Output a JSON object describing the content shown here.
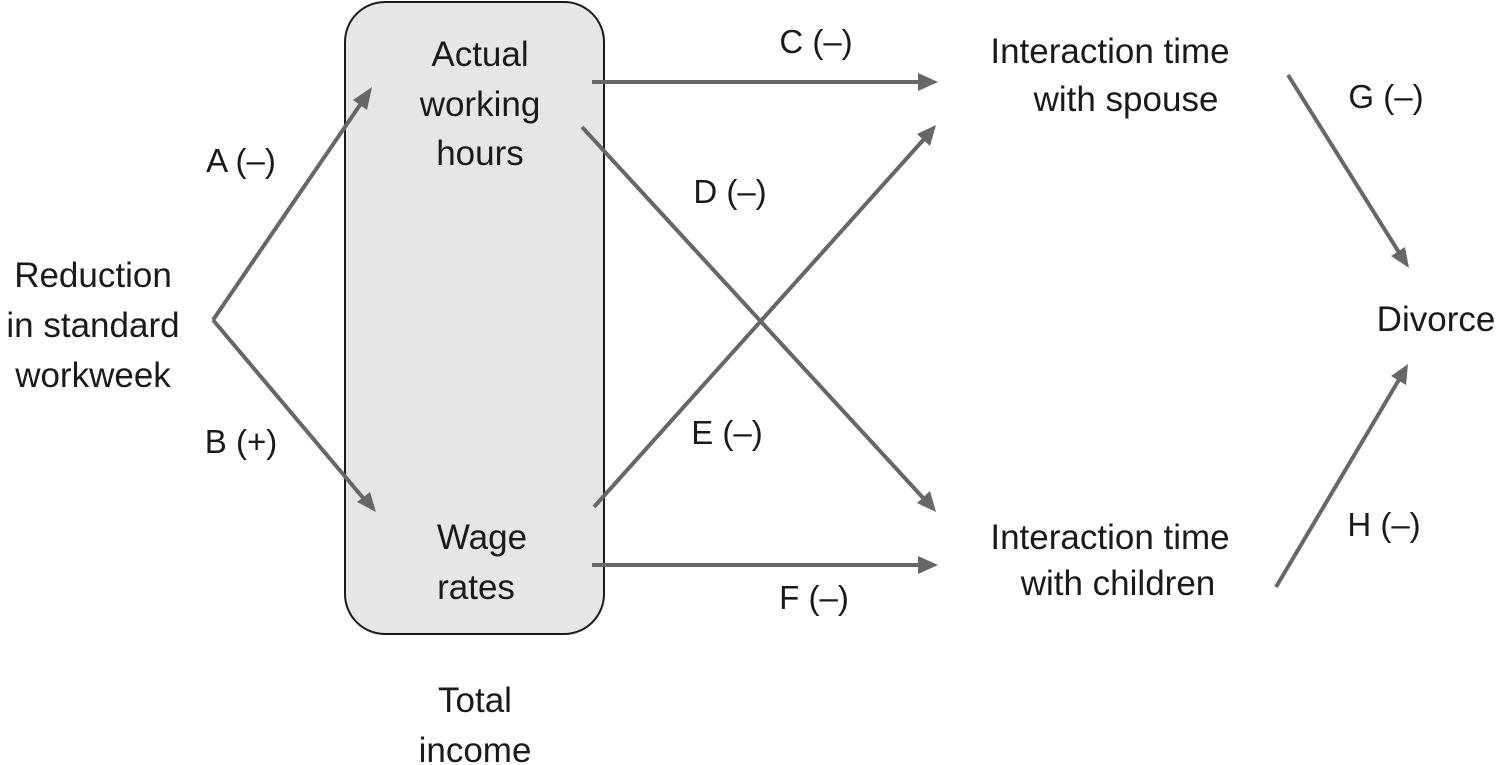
{
  "nodes": {
    "reduction": [
      "Reduction",
      "in standard",
      "workweek"
    ],
    "hours": [
      "Actual",
      "working",
      "hours"
    ],
    "wages": [
      "Wage",
      "rates"
    ],
    "total_income": [
      "Total",
      "income"
    ],
    "spouse": [
      "Interaction time",
      "with spouse"
    ],
    "children": [
      "Interaction time",
      "with children"
    ],
    "divorce": [
      "Divorce"
    ]
  },
  "edges": {
    "A": "A (–)",
    "B": "B (+)",
    "C": "C (–)",
    "D": "D (–)",
    "E": "E (–)",
    "F": "F (–)",
    "G": "G (–)",
    "H": "H (–)"
  },
  "colors": {
    "arrow": "#676767",
    "box_fill": "#e6e6e6",
    "text": "#1a1a1a"
  }
}
